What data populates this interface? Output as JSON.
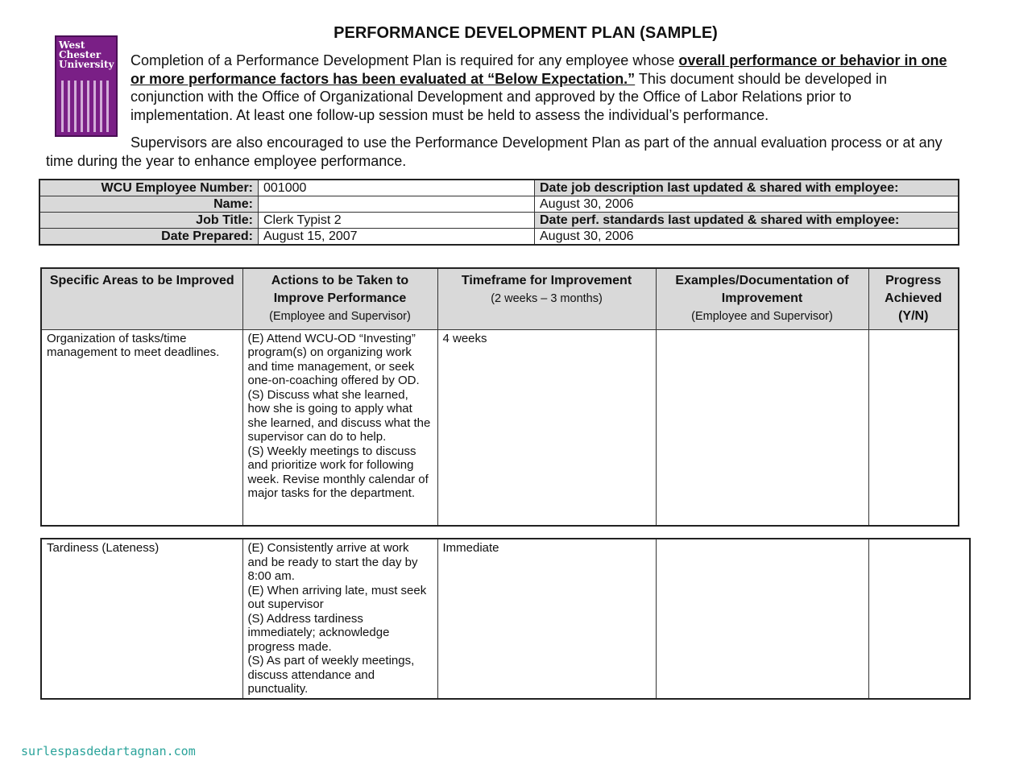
{
  "title": "PERFORMANCE DEVELOPMENT PLAN (SAMPLE)",
  "logo_text": "West Chester University",
  "intro": {
    "part1": "Completion of a Performance Development Plan is required for any employee whose ",
    "underlined": "overall performance or behavior in one or more performance factors has been evaluated at “Below Expectation.”",
    "part2": "  This document should be developed in conjunction with the Office of Organizational Development and approved by the Office of Labor Relations prior to implementation.  At least one follow-up session must be held to assess the individual’s performance.",
    "para2": "Supervisors are also encouraged to use the Performance Development Plan as part of the annual evaluation process or at any time during the year to enhance employee performance."
  },
  "info": {
    "employee_number_label": "WCU Employee Number:",
    "employee_number": "001000",
    "name_label": "Name:",
    "name": "",
    "job_title_label": "Job Title:",
    "job_title": "Clerk Typist 2",
    "date_prepared_label": "Date Prepared:",
    "date_prepared": "August 15, 2007",
    "job_desc_label": "Date job description last updated & shared with employee:",
    "job_desc_date": "August 30, 2006",
    "perf_std_label": "Date perf. standards last updated & shared with employee:",
    "perf_std_date": "August 30, 2006"
  },
  "columns": [
    {
      "title": "Specific Areas to be Improved",
      "sub": ""
    },
    {
      "title": "Actions to be Taken to Improve Performance",
      "sub": "(Employee and Supervisor)"
    },
    {
      "title": "Timeframe for Improvement",
      "sub": "(2 weeks – 3 months)"
    },
    {
      "title": "Examples/Documentation of Improvement",
      "sub": "(Employee and Supervisor)"
    },
    {
      "title": "Progress Achieved (Y/N)",
      "sub": ""
    }
  ],
  "rows": [
    {
      "area": "Organization of tasks/time management to meet deadlines.",
      "actions": "(E)  Attend WCU-OD “Investing” program(s) on organizing work and time management, or seek one-on-coaching offered by OD.\n(S) Discuss what she learned, how she is going to apply what she learned, and discuss what the supervisor can do to help.\n(S) Weekly meetings to discuss and prioritize work for following week. Revise monthly calendar of major tasks for the department.",
      "timeframe": "4 weeks",
      "examples": "",
      "progress": ""
    },
    {
      "area": "Tardiness (Lateness)",
      "actions": "(E) Consistently arrive at work and be ready to start the day by 8:00 am.\n(E) When arriving late, must seek out supervisor\n(S) Address tardiness immediately; acknowledge progress made.\n(S) As part of weekly meetings, discuss attendance and punctuality.",
      "timeframe": "Immediate",
      "examples": "",
      "progress": ""
    }
  ],
  "watermark": "surlespasdedartagnan.com"
}
